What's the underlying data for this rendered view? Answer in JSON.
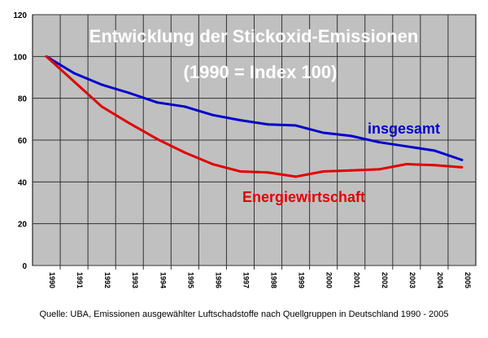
{
  "chart_data": {
    "type": "line",
    "title": "Entwicklung der Stickoxid-Emissionen",
    "subtitle": "(1990 = Index 100)",
    "categories": [
      "1990",
      "1991",
      "1992",
      "1993",
      "1994",
      "1995",
      "1996",
      "1997",
      "1998",
      "1999",
      "2000",
      "2001",
      "2002",
      "2003",
      "2004",
      "2005"
    ],
    "ylim": [
      0,
      120
    ],
    "yticks": [
      0,
      20,
      40,
      60,
      80,
      100,
      120
    ],
    "grid": true,
    "series": [
      {
        "name": "insgesamt",
        "color": "#0000cc",
        "values": [
          100,
          92,
          86.5,
          82.5,
          78,
          76,
          72,
          69.5,
          67.5,
          67,
          63.5,
          62,
          59,
          57,
          55,
          50.5
        ]
      },
      {
        "name": "Energiewirtschaft",
        "color": "#e00000",
        "values": [
          100,
          88,
          76,
          68,
          60.5,
          54,
          48.5,
          45,
          44.5,
          42.5,
          45,
          45.5,
          46,
          48.5,
          48,
          47
        ]
      }
    ],
    "source": "Quelle: UBA, Emissionen ausgewählter Luftschadstoffe nach Quellgruppen in Deutschland 1990 - 2005"
  }
}
